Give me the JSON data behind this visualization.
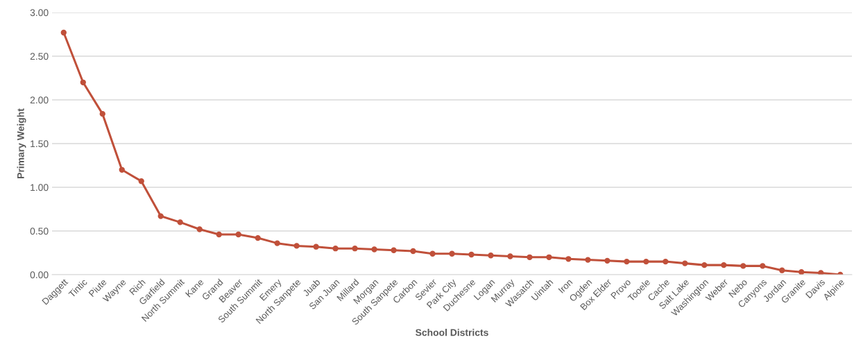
{
  "chart_data": {
    "type": "line",
    "xlabel": "School Districts",
    "ylabel": "Primary Weight",
    "categories": [
      "Daggett",
      "Tintic",
      "Piute",
      "Wayne",
      "Rich",
      "Garfield",
      "North Summit",
      "Kane",
      "Grand",
      "Beaver",
      "South Summit",
      "Emery",
      "North Sanpete",
      "Juab",
      "San Juan",
      "Millard",
      "Morgan",
      "South Sanpete",
      "Carbon",
      "Sevier",
      "Park City",
      "Duchesne",
      "Logan",
      "Murray",
      "Wasatch",
      "Uintah",
      "Iron",
      "Ogden",
      "Box Elder",
      "Provo",
      "Tooele",
      "Cache",
      "Salt Lake",
      "Washington",
      "Weber",
      "Nebo",
      "Canyons",
      "Jordan",
      "Granite",
      "Davis",
      "Alpine"
    ],
    "series": [
      {
        "color": "#c0503a",
        "values": [
          2.77,
          2.2,
          1.84,
          1.2,
          1.07,
          0.67,
          0.6,
          0.52,
          0.46,
          0.46,
          0.42,
          0.36,
          0.33,
          0.32,
          0.3,
          0.3,
          0.29,
          0.28,
          0.27,
          0.24,
          0.24,
          0.23,
          0.22,
          0.21,
          0.2,
          0.2,
          0.18,
          0.17,
          0.16,
          0.15,
          0.15,
          0.15,
          0.13,
          0.11,
          0.11,
          0.1,
          0.1,
          0.05,
          0.03,
          0.02,
          0.0
        ]
      }
    ],
    "ylim": [
      0,
      3
    ],
    "yticks": [
      {
        "value": 0,
        "label": "0.00"
      },
      {
        "value": 0.5,
        "label": "0.50"
      },
      {
        "value": 1,
        "label": "1.00"
      },
      {
        "value": 1.5,
        "label": "1.50"
      },
      {
        "value": 2,
        "label": "2.00"
      },
      {
        "value": 2.5,
        "label": "2.50"
      },
      {
        "value": 3,
        "label": "3.00"
      }
    ],
    "grid": "y",
    "marker": "circle",
    "line_style": "solid"
  }
}
